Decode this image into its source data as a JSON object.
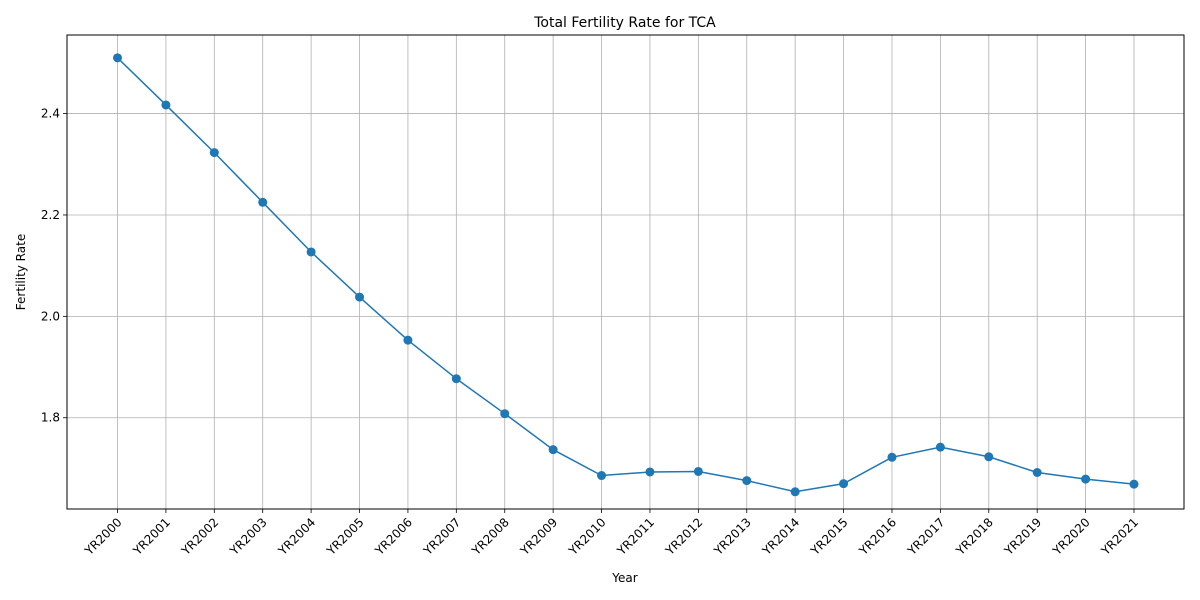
{
  "chart_data": {
    "type": "line",
    "title": "Total Fertility Rate for TCA",
    "xlabel": "Year",
    "ylabel": "Fertility Rate",
    "categories": [
      "YR2000",
      "YR2001",
      "YR2002",
      "YR2003",
      "YR2004",
      "YR2005",
      "YR2006",
      "YR2007",
      "YR2008",
      "YR2009",
      "YR2010",
      "YR2011",
      "YR2012",
      "YR2013",
      "YR2014",
      "YR2015",
      "YR2016",
      "YR2017",
      "YR2018",
      "YR2019",
      "YR2020",
      "YR2021"
    ],
    "series": [
      {
        "values": [
          2.51,
          2.417,
          2.323,
          2.225,
          2.127,
          2.038,
          1.953,
          1.877,
          1.808,
          1.737,
          1.686,
          1.693,
          1.694,
          1.676,
          1.654,
          1.67,
          1.722,
          1.742,
          1.723,
          1.692,
          1.679,
          1.669
        ],
        "color": "#1f77b4",
        "marker": "circle"
      }
    ],
    "ylim": [
      1.62,
      2.555
    ],
    "yticks": [
      "1.8",
      "2.0",
      "2.2",
      "2.4"
    ],
    "grid": true
  }
}
